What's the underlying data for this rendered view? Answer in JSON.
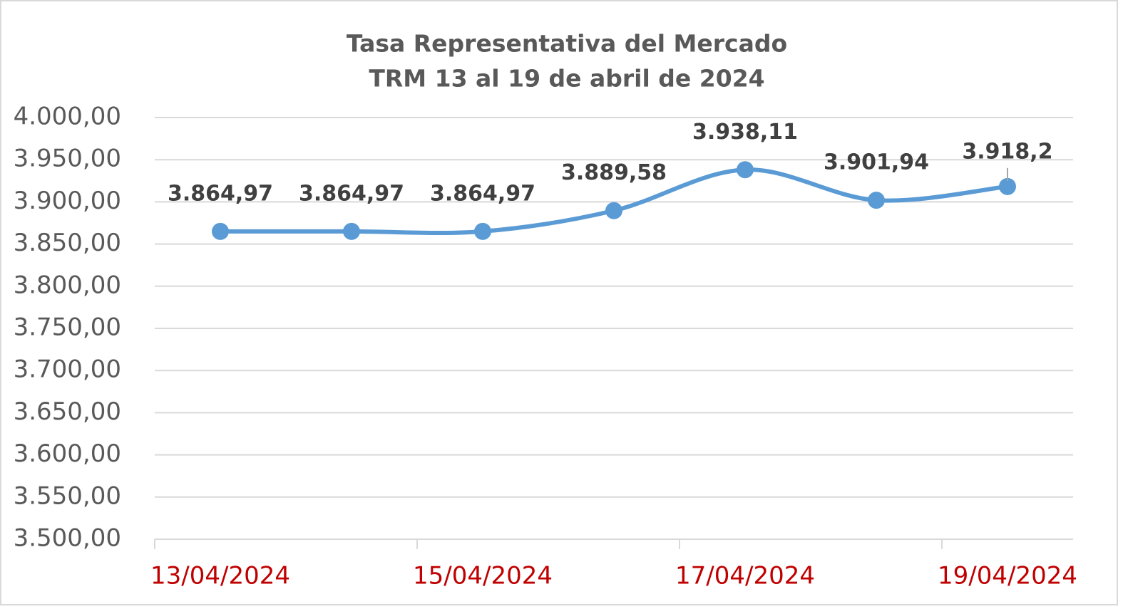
{
  "chart_data": {
    "type": "line",
    "title": "Tasa Representativa del Mercado",
    "subtitle": "TRM 13 al 19 de abril de 2024",
    "categories": [
      "13/04/2024",
      null,
      "15/04/2024",
      null,
      "17/04/2024",
      null,
      "19/04/2024"
    ],
    "series": [
      {
        "name": "TRM",
        "color": "#5b9bd5",
        "values": [
          3864.97,
          3864.97,
          3864.97,
          3889.58,
          3938.11,
          3901.94,
          3918.2
        ],
        "value_labels": [
          "3.864,97",
          "3.864,97",
          "3.864,97",
          "3.889,58",
          "3.938,11",
          "3.901,94",
          "3.918,2"
        ]
      }
    ],
    "ylim": [
      3500,
      4000
    ],
    "yticks": [
      {
        "value": 3500,
        "label": "3.500,00"
      },
      {
        "value": 3550,
        "label": "3.550,00"
      },
      {
        "value": 3600,
        "label": "3.600,00"
      },
      {
        "value": 3650,
        "label": "3.650,00"
      },
      {
        "value": 3700,
        "label": "3.700,00"
      },
      {
        "value": 3750,
        "label": "3.750,00"
      },
      {
        "value": 3800,
        "label": "3.800,00"
      },
      {
        "value": 3850,
        "label": "3.850,00"
      },
      {
        "value": 3900,
        "label": "3.900,00"
      },
      {
        "value": 3950,
        "label": "3.950,00"
      },
      {
        "value": 4000,
        "label": "4.000,00"
      }
    ],
    "grid": true,
    "xtick_color": "#c00000"
  }
}
